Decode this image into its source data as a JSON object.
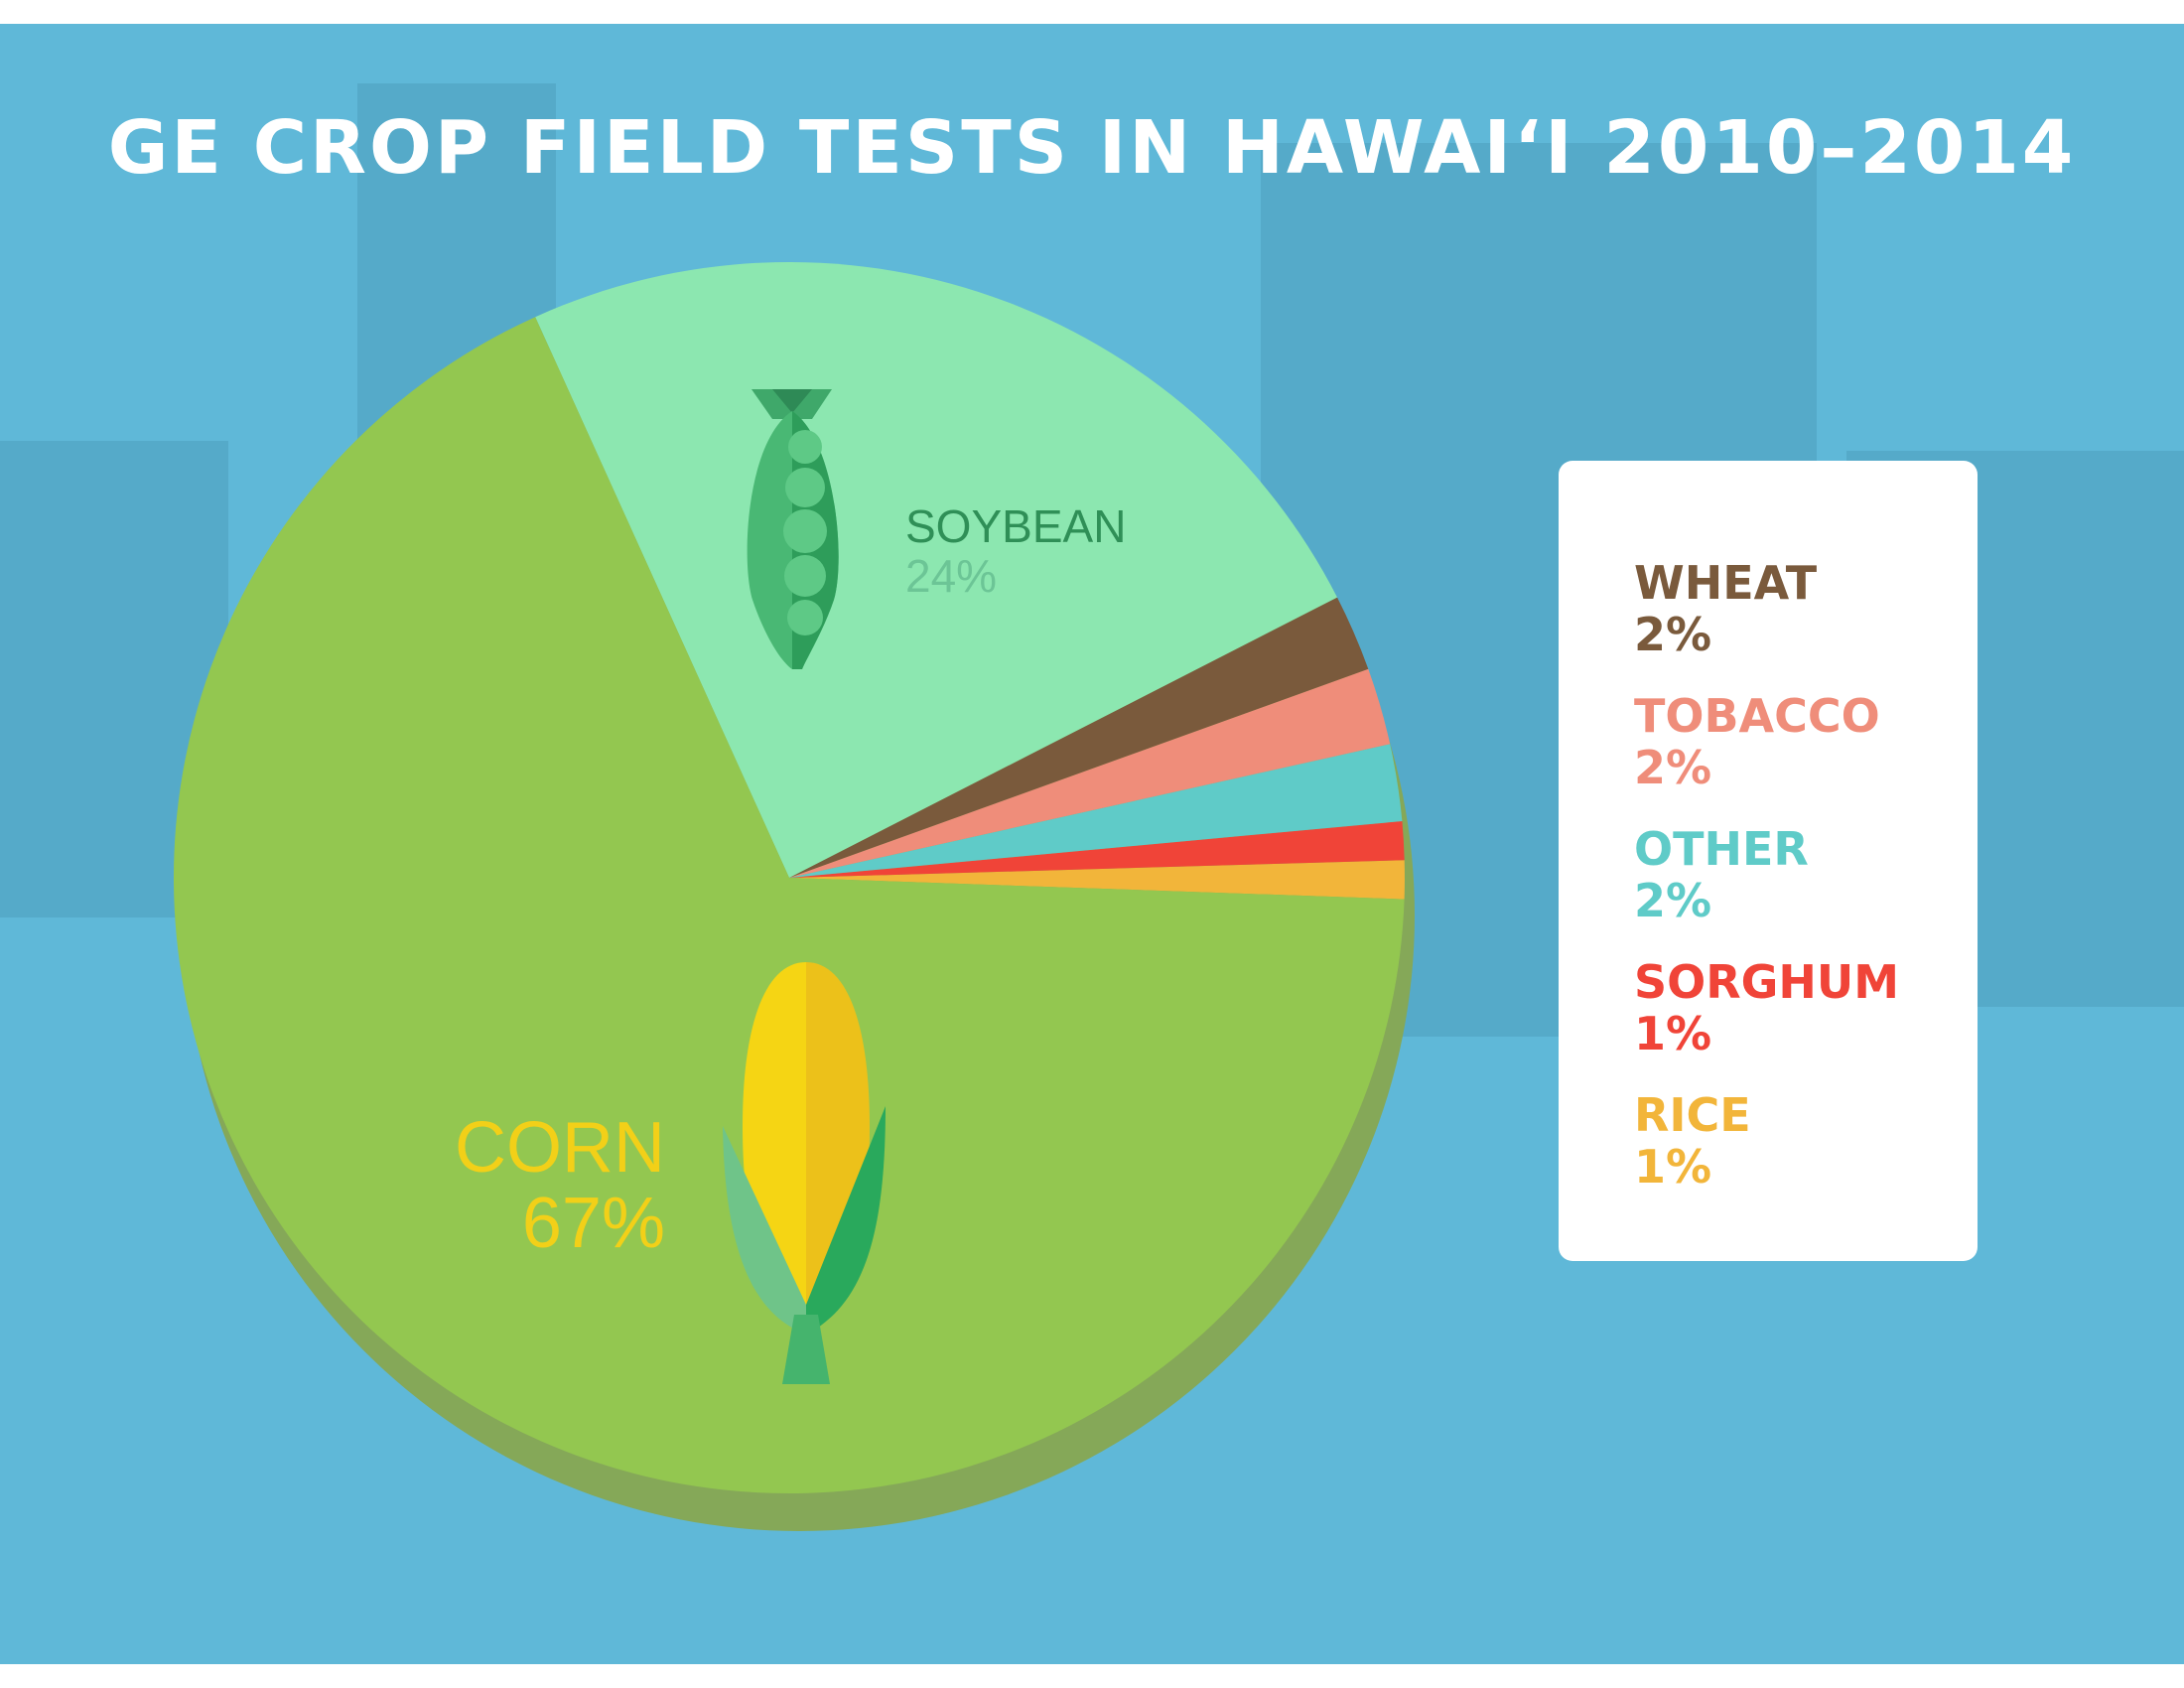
{
  "chart_data": {
    "type": "pie",
    "title": "GE CROP FIELD TESTS IN HAWAI‘I 2010–2014",
    "slices": [
      {
        "name": "CORN",
        "value": 67,
        "label": "67%",
        "color": "#93c750",
        "shade": "#85a858",
        "text_color": "#f2d018"
      },
      {
        "name": "SOYBEAN",
        "value": 24,
        "label": "24%",
        "color": "#8ce7b0",
        "shade": "#6fb087",
        "text_color": "#2f8f57",
        "value_color": "#6cc596"
      },
      {
        "name": "WHEAT",
        "value": 2,
        "label": "2%",
        "color": "#7a5a3c",
        "text_color": "#7a5a3c"
      },
      {
        "name": "TOBACCO",
        "value": 2,
        "label": "2%",
        "color": "#ef8d7a",
        "text_color": "#ef8d7a"
      },
      {
        "name": "OTHER",
        "value": 2,
        "label": "2%",
        "color": "#5fcbc8",
        "text_color": "#5fcbc8"
      },
      {
        "name": "SORGHUM",
        "value": 1,
        "label": "1%",
        "color": "#f04438",
        "text_color": "#f04438"
      },
      {
        "name": "RICE",
        "value": 1,
        "label": "1%",
        "color": "#f2b53a",
        "text_color": "#f2b53a"
      }
    ],
    "legend_position": "right",
    "colors": {
      "background": "#5fb8d8",
      "title": "#ffffff",
      "legend_bg": "#ffffff"
    }
  }
}
